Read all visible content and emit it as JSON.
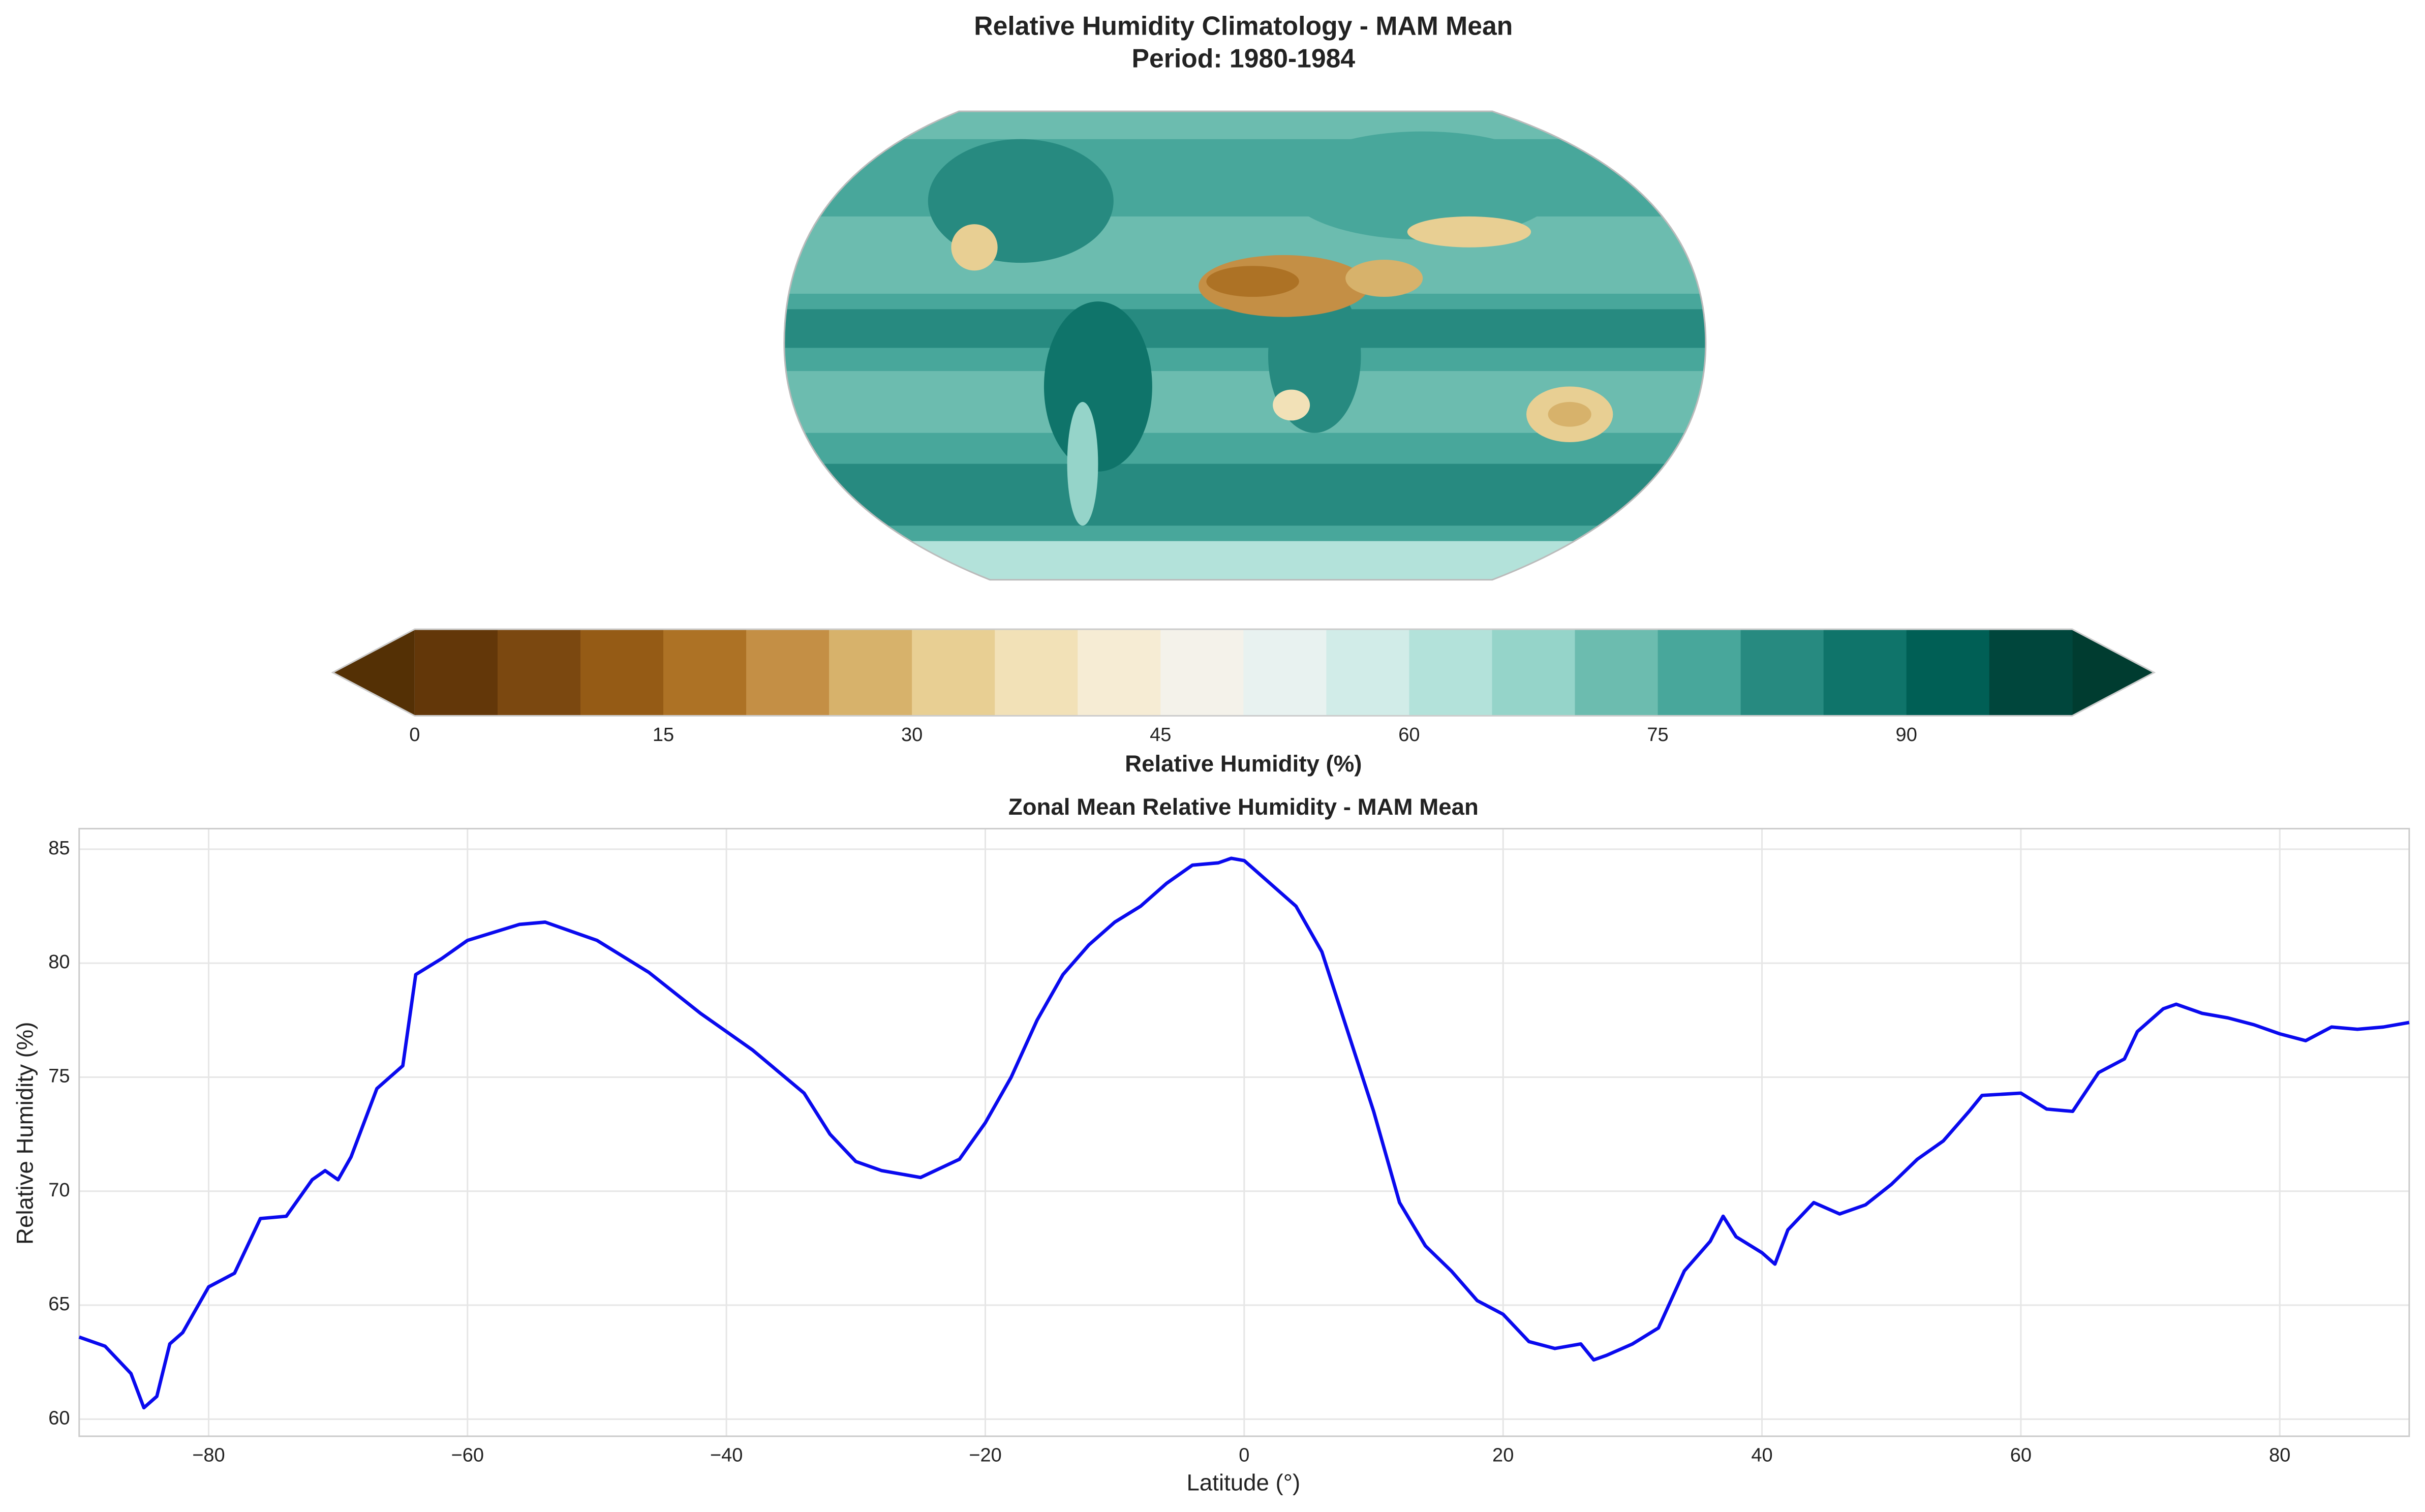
{
  "chart_data": [
    {
      "type": "map",
      "title": "Relative Humidity Climatology - MAM Mean",
      "subtitle": "Period: 1980-1984",
      "colorbar_label": "Relative Humidity (%)",
      "levels": [
        0,
        5,
        10,
        15,
        20,
        25,
        30,
        35,
        40,
        45,
        50,
        55,
        60,
        65,
        70,
        75,
        80,
        85,
        90,
        95,
        100
      ],
      "colors": [
        "#633709",
        "#7b4810",
        "#955b15",
        "#ad7225",
        "#c48f45",
        "#d7b26b",
        "#e8cf93",
        "#f2e1b7",
        "#f6ecd4",
        "#f4f2ea",
        "#e8f2f0",
        "#d1ece8",
        "#b3e2da",
        "#95d4c9",
        "#6cbcaf",
        "#48a79b",
        "#278a80",
        "#0f746a",
        "#005f55",
        "#00463c"
      ],
      "under_color": "#543005",
      "over_color": "#003c30",
      "ticks": [
        0,
        15,
        30,
        45,
        60,
        75,
        90
      ]
    },
    {
      "type": "line",
      "title": "Zonal Mean Relative Humidity - MAM Mean",
      "xlabel": "Latitude (°)",
      "ylabel": "Relative Humidity (%)",
      "x": [
        -90,
        -88,
        -86,
        -85,
        -84,
        -83,
        -82,
        -80,
        -78,
        -76,
        -74,
        -72,
        -71,
        -70,
        -69,
        -67,
        -65,
        -64,
        -62,
        -60,
        -56,
        -54,
        -50,
        -46,
        -42,
        -38,
        -34,
        -32,
        -30,
        -28,
        -25,
        -22,
        -20,
        -18,
        -16,
        -14,
        -12,
        -10,
        -8,
        -6,
        -4,
        -2,
        -1,
        0,
        2,
        4,
        6,
        8,
        10,
        12,
        14,
        16,
        18,
        20,
        22,
        24,
        26,
        27,
        28,
        30,
        32,
        34,
        36,
        37,
        38,
        40,
        41,
        42,
        44,
        46,
        48,
        50,
        52,
        54,
        56,
        57,
        60,
        62,
        64,
        66,
        68,
        69,
        71,
        72,
        74,
        76,
        78,
        80,
        82,
        84,
        86,
        88,
        90
      ],
      "series": [
        {
          "name": "Zonal mean",
          "color": "#0a0aee",
          "values": [
            63.6,
            63.2,
            62.0,
            60.5,
            61.0,
            63.3,
            63.8,
            65.8,
            66.4,
            68.8,
            68.9,
            70.5,
            70.9,
            70.5,
            71.5,
            74.5,
            75.5,
            79.5,
            80.2,
            81.0,
            81.7,
            81.8,
            81.0,
            79.6,
            77.8,
            76.2,
            74.3,
            72.5,
            71.3,
            70.9,
            70.6,
            71.4,
            73.0,
            75.0,
            77.5,
            79.5,
            80.8,
            81.8,
            82.5,
            83.5,
            84.3,
            84.4,
            84.6,
            84.5,
            83.5,
            82.5,
            80.5,
            77.0,
            73.5,
            69.5,
            67.6,
            66.5,
            65.2,
            64.6,
            63.4,
            63.1,
            63.3,
            62.6,
            62.8,
            63.3,
            64.0,
            66.5,
            67.8,
            68.9,
            68.0,
            67.3,
            66.8,
            68.3,
            69.5,
            69.0,
            69.4,
            70.3,
            71.4,
            72.2,
            73.5,
            74.2,
            74.3,
            73.6,
            73.5,
            75.2,
            75.8,
            77.0,
            78.0,
            78.2,
            77.8,
            77.6,
            77.3,
            76.9,
            76.6,
            77.2,
            77.1,
            77.2,
            77.4
          ]
        }
      ],
      "xlim": [
        -90,
        90
      ],
      "ylim": [
        59.25,
        85.9
      ],
      "xticks": [
        {
          "value": -80,
          "label": "−80"
        },
        {
          "value": -60,
          "label": "−60"
        },
        {
          "value": -40,
          "label": "−40"
        },
        {
          "value": -20,
          "label": "−20"
        },
        0,
        20,
        40,
        60,
        80
      ],
      "yticks": [
        60,
        65,
        70,
        75,
        80,
        85
      ],
      "grid": true
    }
  ]
}
